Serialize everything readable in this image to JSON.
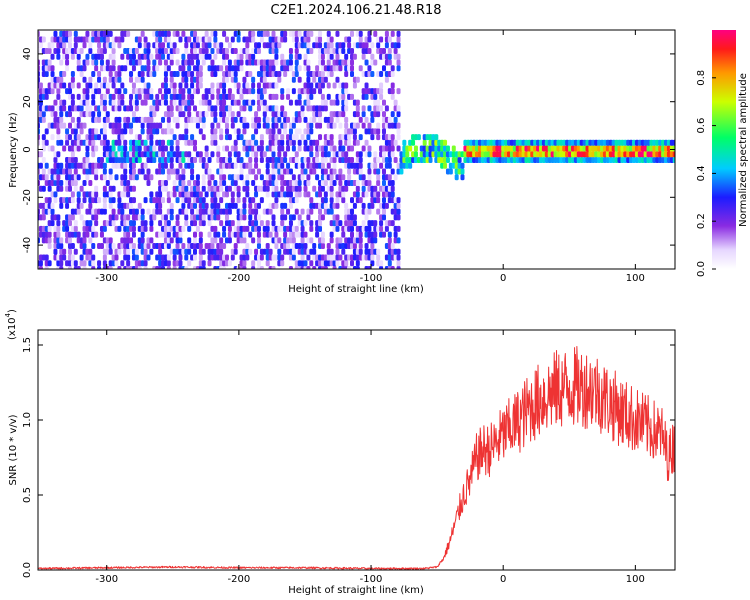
{
  "title": "C2E1.2024.106.21.48.R18",
  "chart_data": [
    {
      "type": "heatmap",
      "xlabel": "Height of straight line (km)",
      "ylabel": "Frequency (Hz)",
      "xlim": [
        -352,
        130
      ],
      "ylim": [
        -50,
        50
      ],
      "xticks": [
        -300,
        -200,
        -100,
        0,
        100
      ],
      "xtick_labels": [
        "-300",
        "-200",
        "-100",
        "0",
        "100"
      ],
      "yticks": [
        40,
        20,
        0,
        -20,
        -40
      ],
      "ytick_labels": [
        "40",
        "20",
        "0",
        "-20",
        "-40"
      ],
      "colorbar": {
        "label": "Normalized spectral amplitude",
        "range": [
          0,
          1
        ],
        "ticks": [
          0.0,
          0.2,
          0.4,
          0.6,
          0.8
        ],
        "tick_labels": [
          "0.0",
          "0.2",
          "0.4",
          "0.6",
          "0.8"
        ],
        "colormap": "rainbow"
      },
      "regions": [
        {
          "x": [
            -352,
            -78
          ],
          "freq": [
            -50,
            50
          ],
          "amplitude": [
            0.05,
            0.35
          ],
          "pattern": "broadband noise"
        },
        {
          "x": [
            -300,
            -240
          ],
          "freq": [
            -5,
            5
          ],
          "amplitude": [
            0.2,
            0.5
          ],
          "pattern": "weak band"
        },
        {
          "x": [
            -78,
            -30
          ],
          "freq": [
            -12,
            6
          ],
          "amplitude": [
            0.3,
            0.7
          ],
          "pattern": "onset curve"
        },
        {
          "x": [
            -30,
            130
          ],
          "freq": [
            -2,
            2
          ],
          "amplitude": [
            0.6,
            1.0
          ],
          "pattern": "narrow line at 0 Hz"
        }
      ]
    },
    {
      "type": "line",
      "xlabel": "Height of straight line (km)",
      "ylabel": "SNR (10 * v/v)",
      "scale_label": "(x10",
      "scale_exp": "4",
      "scale_close": ")",
      "xlim": [
        -352,
        130
      ],
      "ylim": [
        0,
        1.6
      ],
      "xticks": [
        -300,
        -200,
        -100,
        0,
        100
      ],
      "xtick_labels": [
        "-300",
        "-200",
        "-100",
        "0",
        "100"
      ],
      "yticks": [
        0.0,
        0.5,
        1.0,
        1.5
      ],
      "ytick_labels": [
        "0.0",
        "0.5",
        "1.0",
        "1.5"
      ],
      "color": "#ee3333",
      "series": [
        {
          "x": [
            -352,
            -300,
            -250,
            -200,
            -150,
            -100,
            -60,
            -50,
            -45,
            -40,
            -35,
            -30,
            -25,
            -20,
            -15,
            -10,
            -5,
            0,
            10,
            20,
            30,
            40,
            50,
            60,
            70,
            80,
            90,
            100,
            110,
            120,
            125,
            130
          ],
          "y": [
            0.01,
            0.015,
            0.02,
            0.015,
            0.015,
            0.01,
            0.01,
            0.02,
            0.08,
            0.2,
            0.35,
            0.5,
            0.6,
            0.75,
            0.8,
            0.8,
            0.85,
            0.9,
            0.98,
            1.08,
            1.15,
            1.2,
            1.22,
            1.22,
            1.2,
            1.12,
            1.05,
            1.0,
            0.95,
            0.9,
            0.75,
            0.85
          ]
        }
      ]
    }
  ]
}
